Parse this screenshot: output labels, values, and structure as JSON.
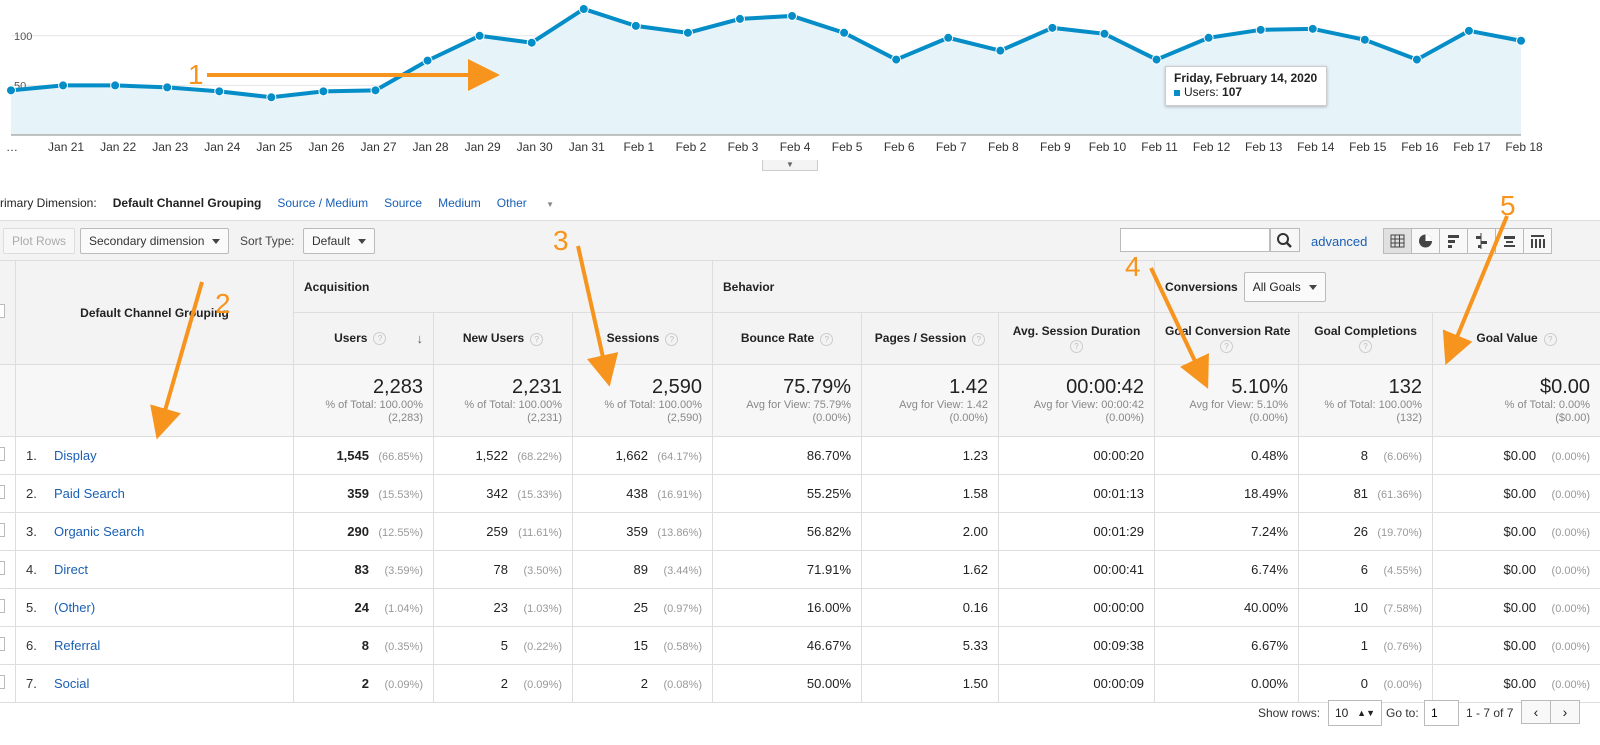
{
  "chart_data": {
    "type": "area",
    "series": [
      {
        "name": "Users",
        "color": "#058dc7",
        "values": [
          45,
          50,
          50,
          48,
          44,
          38,
          44,
          45,
          75,
          100,
          93,
          127,
          110,
          103,
          117,
          120,
          103,
          76,
          98,
          85,
          108,
          102,
          76,
          98,
          106,
          107,
          96,
          76,
          105,
          95
        ]
      }
    ],
    "x_labels": [
      "…",
      "Jan 21",
      "Jan 22",
      "Jan 23",
      "Jan 24",
      "Jan 25",
      "Jan 26",
      "Jan 27",
      "Jan 28",
      "Jan 29",
      "Jan 30",
      "Jan 31",
      "Feb 1",
      "Feb 2",
      "Feb 3",
      "Feb 4",
      "Feb 5",
      "Feb 6",
      "Feb 7",
      "Feb 8",
      "Feb 9",
      "Feb 10",
      "Feb 11",
      "Feb 12",
      "Feb 13",
      "Feb 14",
      "Feb 15",
      "Feb 16",
      "Feb 17",
      "Feb 18"
    ],
    "y_ticks": [
      "100",
      "50"
    ],
    "tick_values": [
      100,
      50
    ],
    "ylim": [
      0,
      127
    ],
    "tooltip": {
      "date": "Friday, February 14, 2020",
      "label": "Users:",
      "value": "107"
    }
  },
  "collapse_icon": "chevron-down-icon",
  "dimension_bar": {
    "label": "rimary Dimension:",
    "current": "Default Channel Grouping",
    "links": [
      "Source / Medium",
      "Source",
      "Medium",
      "Other"
    ]
  },
  "toolbar": {
    "plot_rows": "Plot Rows",
    "secondary_dimension": "Secondary dimension",
    "sort_type_label": "Sort Type:",
    "sort_type_value": "Default",
    "search_placeholder": "",
    "advanced": "advanced",
    "view_icons": [
      "table-icon",
      "pie-icon",
      "performance-icon",
      "comparison-icon",
      "term-cloud-icon",
      "pivot-icon"
    ]
  },
  "table": {
    "dimension_header": "Default Channel Grouping",
    "groups": {
      "acquisition": "Acquisition",
      "behavior": "Behavior",
      "conversions": "Conversions",
      "goals_select": "All Goals"
    },
    "columns": [
      "Users",
      "New Users",
      "Sessions",
      "Bounce Rate",
      "Pages / Session",
      "Avg. Session Duration",
      "Goal Conversion Rate",
      "Goal Completions",
      "Goal Value"
    ],
    "totals": [
      {
        "value": "2,283",
        "l1": "% of Total: 100.00%",
        "l2": "(2,283)"
      },
      {
        "value": "2,231",
        "l1": "% of Total: 100.00%",
        "l2": "(2,231)"
      },
      {
        "value": "2,590",
        "l1": "% of Total: 100.00%",
        "l2": "(2,590)"
      },
      {
        "value": "75.79%",
        "l1": "Avg for View: 75.79%",
        "l2": "(0.00%)"
      },
      {
        "value": "1.42",
        "l1": "Avg for View: 1.42",
        "l2": "(0.00%)"
      },
      {
        "value": "00:00:42",
        "l1": "Avg for View: 00:00:42",
        "l2": "(0.00%)"
      },
      {
        "value": "5.10%",
        "l1": "Avg for View: 5.10%",
        "l2": "(0.00%)"
      },
      {
        "value": "132",
        "l1": "% of Total: 100.00%",
        "l2": "(132)"
      },
      {
        "value": "$0.00",
        "l1": "% of Total: 0.00%",
        "l2": "($0.00)"
      }
    ],
    "rows": [
      {
        "idx": "1.",
        "name": "Display",
        "users": "1,545",
        "users_pct": "(66.85%)",
        "new_users": "1,522",
        "new_users_pct": "(68.22%)",
        "sessions": "1,662",
        "sessions_pct": "(64.17%)",
        "bounce": "86.70%",
        "pps": "1.23",
        "duration": "00:00:20",
        "gcr": "0.48%",
        "goals": "8",
        "goals_pct": "(6.06%)",
        "value": "$0.00",
        "value_pct": "(0.00%)"
      },
      {
        "idx": "2.",
        "name": "Paid Search",
        "users": "359",
        "users_pct": "(15.53%)",
        "new_users": "342",
        "new_users_pct": "(15.33%)",
        "sessions": "438",
        "sessions_pct": "(16.91%)",
        "bounce": "55.25%",
        "pps": "1.58",
        "duration": "00:01:13",
        "gcr": "18.49%",
        "goals": "81",
        "goals_pct": "(61.36%)",
        "value": "$0.00",
        "value_pct": "(0.00%)"
      },
      {
        "idx": "3.",
        "name": "Organic Search",
        "users": "290",
        "users_pct": "(12.55%)",
        "new_users": "259",
        "new_users_pct": "(11.61%)",
        "sessions": "359",
        "sessions_pct": "(13.86%)",
        "bounce": "56.82%",
        "pps": "2.00",
        "duration": "00:01:29",
        "gcr": "7.24%",
        "goals": "26",
        "goals_pct": "(19.70%)",
        "value": "$0.00",
        "value_pct": "(0.00%)"
      },
      {
        "idx": "4.",
        "name": "Direct",
        "users": "83",
        "users_pct": "(3.59%)",
        "new_users": "78",
        "new_users_pct": "(3.50%)",
        "sessions": "89",
        "sessions_pct": "(3.44%)",
        "bounce": "71.91%",
        "pps": "1.62",
        "duration": "00:00:41",
        "gcr": "6.74%",
        "goals": "6",
        "goals_pct": "(4.55%)",
        "value": "$0.00",
        "value_pct": "(0.00%)"
      },
      {
        "idx": "5.",
        "name": "(Other)",
        "users": "24",
        "users_pct": "(1.04%)",
        "new_users": "23",
        "new_users_pct": "(1.03%)",
        "sessions": "25",
        "sessions_pct": "(0.97%)",
        "bounce": "16.00%",
        "pps": "0.16",
        "duration": "00:00:00",
        "gcr": "40.00%",
        "goals": "10",
        "goals_pct": "(7.58%)",
        "value": "$0.00",
        "value_pct": "(0.00%)"
      },
      {
        "idx": "6.",
        "name": "Referral",
        "users": "8",
        "users_pct": "(0.35%)",
        "new_users": "5",
        "new_users_pct": "(0.22%)",
        "sessions": "15",
        "sessions_pct": "(0.58%)",
        "bounce": "46.67%",
        "pps": "5.33",
        "duration": "00:09:38",
        "gcr": "6.67%",
        "goals": "1",
        "goals_pct": "(0.76%)",
        "value": "$0.00",
        "value_pct": "(0.00%)"
      },
      {
        "idx": "7.",
        "name": "Social",
        "users": "2",
        "users_pct": "(0.09%)",
        "new_users": "2",
        "new_users_pct": "(0.09%)",
        "sessions": "2",
        "sessions_pct": "(0.08%)",
        "bounce": "50.00%",
        "pps": "1.50",
        "duration": "00:00:09",
        "gcr": "0.00%",
        "goals": "0",
        "goals_pct": "(0.00%)",
        "value": "$0.00",
        "value_pct": "(0.00%)"
      }
    ]
  },
  "footer": {
    "show_rows_label": "Show rows:",
    "show_rows_value": "10",
    "goto_label": "Go to:",
    "goto_value": "1",
    "range": "1 - 7 of 7"
  },
  "annotations": {
    "color": "#f7941d",
    "labels": [
      "1",
      "2",
      "3",
      "4",
      "5"
    ]
  }
}
